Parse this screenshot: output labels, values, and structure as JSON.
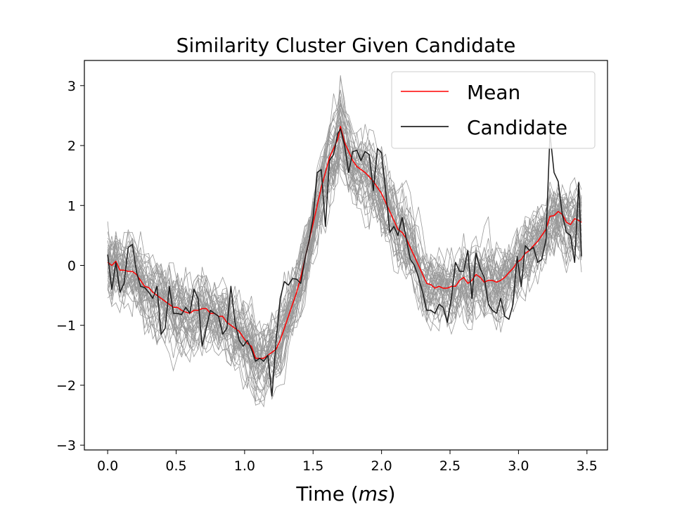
{
  "chart_data": {
    "type": "line",
    "title": "Similarity Cluster Given Candidate",
    "xlabel_prefix": "Time (",
    "xlabel_unit": "ms",
    "xlabel_suffix": ")",
    "ylabel": "",
    "xlim": [
      -0.17,
      3.65
    ],
    "ylim": [
      -3.08,
      3.42
    ],
    "xticks": [
      0.0,
      0.5,
      1.0,
      1.5,
      2.0,
      2.5,
      3.0,
      3.5
    ],
    "xtick_labels": [
      "0.0",
      "0.5",
      "1.0",
      "1.5",
      "2.0",
      "2.5",
      "3.0",
      "3.5"
    ],
    "yticks": [
      3,
      2,
      1,
      0,
      -1,
      -2,
      -3
    ],
    "ytick_labels": [
      "3",
      "2",
      "1",
      "0",
      "−1",
      "−2",
      "−3"
    ],
    "grid": false,
    "legend_position": "top-right",
    "legend": [
      {
        "label": "Mean",
        "color": "#ff0000"
      },
      {
        "label": "Candidate",
        "color": "#000000"
      }
    ],
    "colors": {
      "mean": "#ff0000",
      "candidate": "#1a1a1a",
      "cluster": "#999999"
    },
    "cluster_member_count": 40,
    "series": [
      {
        "name": "Mean",
        "color": "#ff0000",
        "points": [
          [
            0.0,
            0.05
          ],
          [
            0.03,
            0.0
          ],
          [
            0.06,
            0.07
          ],
          [
            0.09,
            -0.08
          ],
          [
            0.12,
            -0.08
          ],
          [
            0.15,
            -0.1
          ],
          [
            0.18,
            -0.1
          ],
          [
            0.21,
            -0.15
          ],
          [
            0.24,
            -0.25
          ],
          [
            0.27,
            -0.35
          ],
          [
            0.3,
            -0.37
          ],
          [
            0.33,
            -0.45
          ],
          [
            0.36,
            -0.5
          ],
          [
            0.39,
            -0.55
          ],
          [
            0.42,
            -0.6
          ],
          [
            0.45,
            -0.65
          ],
          [
            0.48,
            -0.7
          ],
          [
            0.51,
            -0.7
          ],
          [
            0.54,
            -0.75
          ],
          [
            0.57,
            -0.78
          ],
          [
            0.6,
            -0.8
          ],
          [
            0.63,
            -0.75
          ],
          [
            0.66,
            -0.75
          ],
          [
            0.69,
            -0.72
          ],
          [
            0.72,
            -0.72
          ],
          [
            0.75,
            -0.8
          ],
          [
            0.78,
            -0.8
          ],
          [
            0.81,
            -0.85
          ],
          [
            0.84,
            -0.85
          ],
          [
            0.87,
            -0.95
          ],
          [
            0.9,
            -1.0
          ],
          [
            0.93,
            -1.05
          ],
          [
            0.96,
            -1.1
          ],
          [
            0.99,
            -1.2
          ],
          [
            1.02,
            -1.3
          ],
          [
            1.05,
            -1.35
          ],
          [
            1.08,
            -1.55
          ],
          [
            1.11,
            -1.55
          ],
          [
            1.14,
            -1.55
          ],
          [
            1.17,
            -1.5
          ],
          [
            1.2,
            -1.45
          ],
          [
            1.23,
            -1.4
          ],
          [
            1.26,
            -1.25
          ],
          [
            1.29,
            -1.05
          ],
          [
            1.32,
            -0.85
          ],
          [
            1.35,
            -0.65
          ],
          [
            1.38,
            -0.45
          ],
          [
            1.41,
            -0.2
          ],
          [
            1.44,
            0.1
          ],
          [
            1.47,
            0.4
          ],
          [
            1.5,
            0.7
          ],
          [
            1.53,
            1.0
          ],
          [
            1.56,
            1.3
          ],
          [
            1.59,
            1.55
          ],
          [
            1.62,
            1.8
          ],
          [
            1.65,
            1.95
          ],
          [
            1.68,
            2.1
          ],
          [
            1.7,
            2.32
          ],
          [
            1.73,
            2.05
          ],
          [
            1.76,
            1.9
          ],
          [
            1.79,
            1.75
          ],
          [
            1.82,
            1.65
          ],
          [
            1.85,
            1.6
          ],
          [
            1.88,
            1.55
          ],
          [
            1.91,
            1.48
          ],
          [
            1.94,
            1.4
          ],
          [
            1.97,
            1.3
          ],
          [
            2.0,
            1.2
          ],
          [
            2.03,
            1.05
          ],
          [
            2.06,
            0.9
          ],
          [
            2.09,
            0.75
          ],
          [
            2.12,
            0.6
          ],
          [
            2.15,
            0.55
          ],
          [
            2.18,
            0.45
          ],
          [
            2.21,
            0.3
          ],
          [
            2.24,
            0.15
          ],
          [
            2.27,
            0.0
          ],
          [
            2.3,
            -0.15
          ],
          [
            2.33,
            -0.3
          ],
          [
            2.36,
            -0.32
          ],
          [
            2.39,
            -0.38
          ],
          [
            2.42,
            -0.35
          ],
          [
            2.45,
            -0.38
          ],
          [
            2.48,
            -0.38
          ],
          [
            2.51,
            -0.35
          ],
          [
            2.54,
            -0.35
          ],
          [
            2.57,
            -0.25
          ],
          [
            2.6,
            -0.2
          ],
          [
            2.63,
            -0.3
          ],
          [
            2.66,
            -0.25
          ],
          [
            2.69,
            -0.15
          ],
          [
            2.72,
            -0.2
          ],
          [
            2.75,
            -0.28
          ],
          [
            2.78,
            -0.25
          ],
          [
            2.81,
            -0.25
          ],
          [
            2.84,
            -0.28
          ],
          [
            2.87,
            -0.25
          ],
          [
            2.9,
            -0.2
          ],
          [
            2.93,
            -0.12
          ],
          [
            2.96,
            -0.05
          ],
          [
            2.99,
            0.05
          ],
          [
            3.02,
            0.1
          ],
          [
            3.05,
            0.2
          ],
          [
            3.08,
            0.25
          ],
          [
            3.11,
            0.33
          ],
          [
            3.14,
            0.4
          ],
          [
            3.17,
            0.5
          ],
          [
            3.2,
            0.6
          ],
          [
            3.23,
            0.82
          ],
          [
            3.26,
            0.83
          ],
          [
            3.29,
            0.9
          ],
          [
            3.32,
            0.85
          ],
          [
            3.35,
            0.72
          ],
          [
            3.38,
            0.68
          ],
          [
            3.41,
            0.78
          ],
          [
            3.44,
            0.75
          ],
          [
            3.46,
            0.72
          ]
        ]
      },
      {
        "name": "Candidate",
        "color": "#1a1a1a",
        "points": [
          [
            0.0,
            0.18
          ],
          [
            0.03,
            -0.4
          ],
          [
            0.06,
            0.05
          ],
          [
            0.09,
            -0.45
          ],
          [
            0.12,
            -0.3
          ],
          [
            0.15,
            0.3
          ],
          [
            0.18,
            0.35
          ],
          [
            0.21,
            -0.1
          ],
          [
            0.24,
            -0.35
          ],
          [
            0.27,
            -0.37
          ],
          [
            0.3,
            -0.45
          ],
          [
            0.33,
            -0.55
          ],
          [
            0.36,
            -0.35
          ],
          [
            0.39,
            -1.15
          ],
          [
            0.42,
            -1.05
          ],
          [
            0.45,
            -0.35
          ],
          [
            0.48,
            -0.8
          ],
          [
            0.51,
            -0.8
          ],
          [
            0.54,
            -0.82
          ],
          [
            0.57,
            -0.7
          ],
          [
            0.6,
            -0.8
          ],
          [
            0.63,
            -0.4
          ],
          [
            0.66,
            -0.55
          ],
          [
            0.69,
            -1.35
          ],
          [
            0.72,
            -1.05
          ],
          [
            0.75,
            -0.75
          ],
          [
            0.78,
            -0.8
          ],
          [
            0.81,
            -0.85
          ],
          [
            0.84,
            -1.15
          ],
          [
            0.87,
            -1.05
          ],
          [
            0.9,
            -0.35
          ],
          [
            0.93,
            -0.95
          ],
          [
            0.96,
            -1.25
          ],
          [
            0.99,
            -1.35
          ],
          [
            1.02,
            -1.25
          ],
          [
            1.05,
            -1.4
          ],
          [
            1.08,
            -1.6
          ],
          [
            1.11,
            -1.55
          ],
          [
            1.14,
            -1.6
          ],
          [
            1.17,
            -1.5
          ],
          [
            1.2,
            -2.18
          ],
          [
            1.23,
            -1.25
          ],
          [
            1.26,
            -0.55
          ],
          [
            1.29,
            -0.27
          ],
          [
            1.32,
            -0.33
          ],
          [
            1.35,
            -0.22
          ],
          [
            1.38,
            -0.23
          ],
          [
            1.41,
            -0.3
          ],
          [
            1.44,
            0.1
          ],
          [
            1.47,
            0.4
          ],
          [
            1.5,
            0.8
          ],
          [
            1.53,
            1.55
          ],
          [
            1.56,
            1.6
          ],
          [
            1.59,
            0.65
          ],
          [
            1.62,
            1.75
          ],
          [
            1.65,
            1.85
          ],
          [
            1.68,
            2.2
          ],
          [
            1.7,
            2.28
          ],
          [
            1.73,
            2.0
          ],
          [
            1.76,
            1.55
          ],
          [
            1.79,
            1.9
          ],
          [
            1.82,
            1.92
          ],
          [
            1.85,
            1.75
          ],
          [
            1.88,
            1.9
          ],
          [
            1.91,
            1.85
          ],
          [
            1.94,
            1.25
          ],
          [
            1.97,
            1.95
          ],
          [
            2.0,
            1.88
          ],
          [
            2.03,
            1.25
          ],
          [
            2.06,
            0.55
          ],
          [
            2.09,
            0.65
          ],
          [
            2.12,
            0.5
          ],
          [
            2.15,
            0.8
          ],
          [
            2.18,
            0.45
          ],
          [
            2.21,
            0.1
          ],
          [
            2.24,
            0.0
          ],
          [
            2.27,
            -0.2
          ],
          [
            2.3,
            -0.45
          ],
          [
            2.33,
            -0.75
          ],
          [
            2.36,
            -0.75
          ],
          [
            2.39,
            -0.8
          ],
          [
            2.42,
            -0.65
          ],
          [
            2.45,
            -0.7
          ],
          [
            2.48,
            -0.95
          ],
          [
            2.51,
            -0.55
          ],
          [
            2.54,
            0.05
          ],
          [
            2.57,
            -0.1
          ],
          [
            2.6,
            -0.1
          ],
          [
            2.63,
            0.25
          ],
          [
            2.66,
            -0.55
          ],
          [
            2.69,
            0.2
          ],
          [
            2.72,
            -0.05
          ],
          [
            2.75,
            -0.2
          ],
          [
            2.78,
            -0.65
          ],
          [
            2.81,
            -0.75
          ],
          [
            2.84,
            -0.8
          ],
          [
            2.87,
            -0.55
          ],
          [
            2.9,
            -0.85
          ],
          [
            2.93,
            -0.9
          ],
          [
            2.96,
            -0.65
          ],
          [
            2.99,
            0.15
          ],
          [
            3.02,
            -0.35
          ],
          [
            3.05,
            0.33
          ],
          [
            3.08,
            0.25
          ],
          [
            3.11,
            0.3
          ],
          [
            3.14,
            0.05
          ],
          [
            3.17,
            0.1
          ],
          [
            3.2,
            0.42
          ],
          [
            3.23,
            2.2
          ],
          [
            3.26,
            1.55
          ],
          [
            3.29,
            1.4
          ],
          [
            3.32,
            0.85
          ],
          [
            3.35,
            0.55
          ],
          [
            3.38,
            0.5
          ],
          [
            3.41,
            0.05
          ],
          [
            3.44,
            1.38
          ],
          [
            3.46,
            0.15
          ]
        ]
      }
    ]
  }
}
